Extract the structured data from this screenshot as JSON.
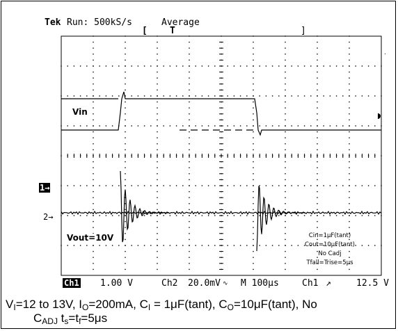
{
  "chart_data": {
    "type": "line",
    "title": "",
    "header": {
      "brand": "Tek",
      "run": "Run: 500kS/s",
      "mode": "Average",
      "trigger_bracket_left": "[",
      "trigger_marker": "T",
      "trigger_bracket_right": "]"
    },
    "series": [
      {
        "name": "Vin",
        "channel": "1",
        "description": "Input step 12 V to 13 V and back"
      },
      {
        "name": "Vout=10V",
        "channel": "2",
        "description": "Output ripple with damped ringing at each input edge"
      }
    ],
    "channel_markers": [
      "1→",
      "2→"
    ],
    "annotations": [
      "Cin=1μF(tant)",
      "Cout=10μF(tant)",
      "No Cadj",
      "Tfall=Trise=5μs"
    ],
    "status_bar": {
      "ch1_badge": "Ch1",
      "ch1_scale": "1.00 V",
      "ch2_label": "Ch2",
      "ch2_scale": "20.0mV",
      "ch2_unit_mark": "∿",
      "timebase": "M 100μs",
      "trigger_source": "Ch1",
      "trigger_slope": "↗",
      "trigger_level": "12.5 V"
    },
    "divisions": {
      "x": 10,
      "y": 8
    },
    "grid": true
  },
  "caption": {
    "line1": "V<sub>I</sub>=12 to 13V, I<sub>O</sub>=200mA, C<sub>I</sub> = 1μF(tant), C<sub>O</sub>=10μF(tant), No",
    "line2": "C<sub>ADJ</sub> t<sub>s</sub>=t<sub>f</sub>=5μs"
  },
  "colors": {
    "trace": "#000000",
    "grid": "#000000",
    "background": "#ffffff"
  }
}
